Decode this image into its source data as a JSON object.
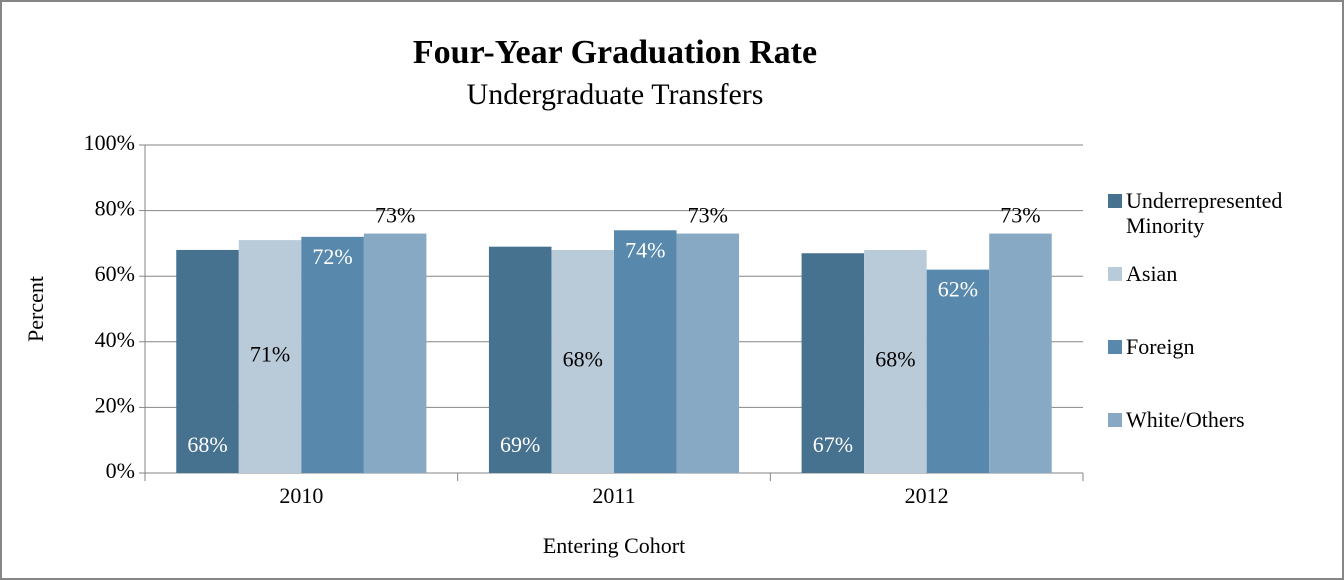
{
  "chart_data": {
    "type": "bar",
    "title": "Four-Year Graduation Rate",
    "subtitle": "Undergraduate Transfers",
    "x_label": "Entering Cohort",
    "y_label": "Percent",
    "categories": [
      "2010",
      "2011",
      "2012"
    ],
    "series": [
      {
        "name": "Underrepresented Minority",
        "color": "#46718f",
        "values": [
          68,
          69,
          67
        ],
        "value_labels": [
          "68%",
          "69%",
          "67%"
        ]
      },
      {
        "name": "Asian",
        "color": "#b9cad9",
        "values": [
          71,
          68,
          68
        ],
        "value_labels": [
          "71%",
          "68%",
          "68%"
        ]
      },
      {
        "name": "Foreign",
        "color": "#5889ad",
        "values": [
          72,
          74,
          62
        ],
        "value_labels": [
          "72%",
          "74%",
          "62%"
        ]
      },
      {
        "name": "White/Others",
        "color": "#87a9c4",
        "values": [
          73,
          73,
          73
        ],
        "value_labels": [
          "73%",
          "73%",
          "73%"
        ]
      }
    ],
    "ylim": [
      0,
      100
    ],
    "yticks": [
      {
        "value": 0,
        "label": "0%"
      },
      {
        "value": 20,
        "label": "20%"
      },
      {
        "value": 40,
        "label": "40%"
      },
      {
        "value": 60,
        "label": "60%"
      },
      {
        "value": 80,
        "label": "80%"
      },
      {
        "value": 100,
        "label": "100%"
      }
    ],
    "grid": true,
    "legend": "right"
  }
}
